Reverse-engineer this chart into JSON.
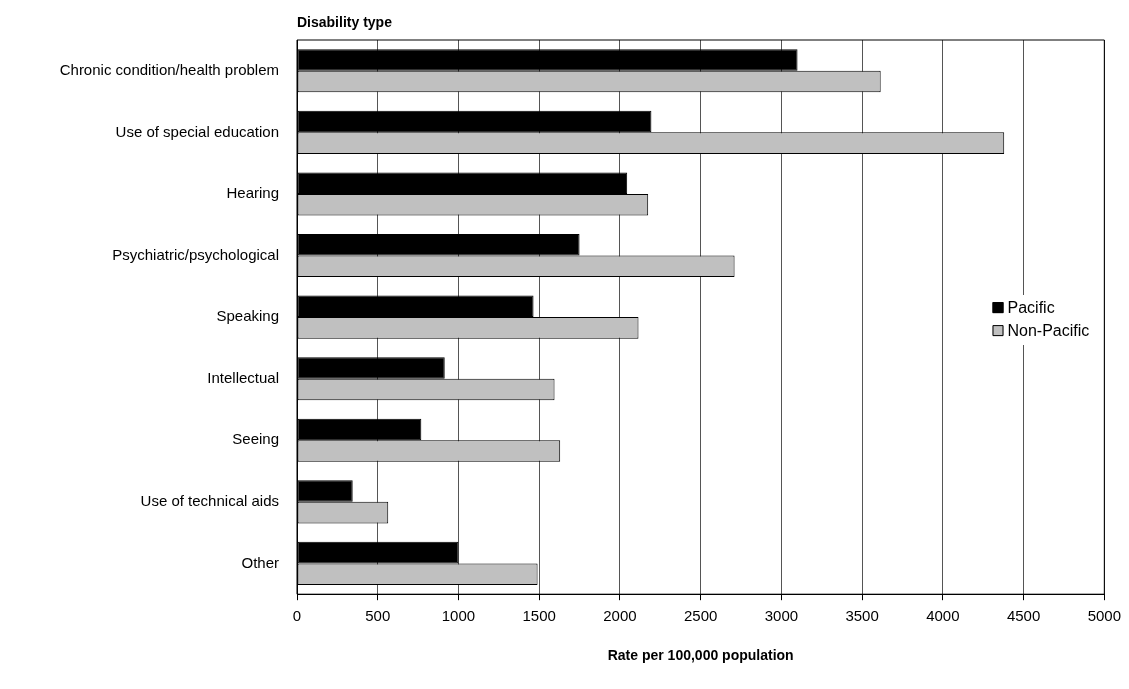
{
  "chart_data": {
    "type": "bar",
    "orientation": "horizontal",
    "ylabel": "Disability type",
    "xlabel": "Rate per 100,000 population",
    "categories": [
      "Chronic condition/health problem",
      "Use of special education",
      "Hearing",
      "Psychiatric/psychological",
      "Speaking",
      "Intellectual",
      "Seeing",
      "Use of technical aids",
      "Other"
    ],
    "series": [
      {
        "name": "Pacific",
        "color": "#000000",
        "values": [
          3100,
          2195,
          2045,
          1750,
          1465,
          915,
          770,
          345,
          1000
        ]
      },
      {
        "name": "Non-Pacific",
        "color": "#c0c0c0",
        "values": [
          3615,
          4380,
          2175,
          2710,
          2115,
          1595,
          1630,
          565,
          1490
        ]
      }
    ],
    "xlim": [
      0,
      5000
    ],
    "xticks": [
      0,
      500,
      1000,
      1500,
      2000,
      2500,
      3000,
      3500,
      4000,
      4500,
      5000
    ],
    "grid": "x",
    "legend": "right"
  }
}
